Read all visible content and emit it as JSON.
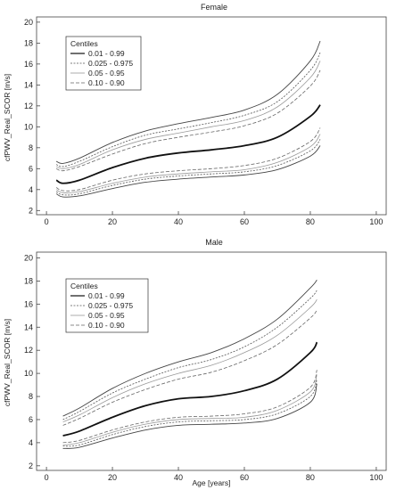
{
  "chart_data": [
    {
      "type": "line",
      "title": "Female",
      "xlabel": "",
      "ylabel": "cfPWV_Real_SCOR [m/s]",
      "xlim": [
        -3,
        103
      ],
      "ylim": [
        1.6,
        20.5
      ],
      "xticks": [
        0,
        20,
        40,
        60,
        80,
        100
      ],
      "yticks": [
        2,
        4,
        6,
        8,
        10,
        12,
        14,
        16,
        18,
        20
      ],
      "grid": false,
      "legend": {
        "title": "Centiles",
        "placement": "top-left",
        "entries": [
          "0.01 - 0.99",
          "0.025 - 0.975",
          "0.05 - 0.95",
          "0.10 - 0.90"
        ]
      },
      "x": [
        3,
        5,
        10,
        20,
        30,
        40,
        50,
        60,
        70,
        80,
        83
      ],
      "series": [
        {
          "role": "median",
          "values": [
            4.9,
            4.6,
            4.9,
            6.1,
            7.0,
            7.5,
            7.8,
            8.2,
            9.0,
            11.0,
            12.1
          ]
        },
        {
          "role": "p99",
          "values": [
            6.7,
            6.5,
            7.0,
            8.5,
            9.6,
            10.3,
            10.9,
            11.6,
            13.1,
            16.3,
            18.2
          ]
        },
        {
          "role": "p975",
          "values": [
            6.4,
            6.2,
            6.7,
            8.1,
            9.2,
            9.8,
            10.4,
            11.1,
            12.4,
            15.4,
            17.1
          ]
        },
        {
          "role": "p95",
          "values": [
            6.2,
            6.0,
            6.4,
            7.8,
            8.8,
            9.4,
            10.0,
            10.6,
            11.9,
            14.7,
            16.3
          ]
        },
        {
          "role": "p90",
          "values": [
            6.0,
            5.8,
            6.2,
            7.4,
            8.4,
            9.0,
            9.5,
            10.1,
            11.3,
            13.9,
            15.4
          ]
        },
        {
          "role": "p10",
          "values": [
            4.2,
            3.9,
            4.0,
            4.9,
            5.5,
            5.8,
            6.0,
            6.3,
            7.0,
            8.6,
            9.9
          ]
        },
        {
          "role": "p05",
          "values": [
            4.0,
            3.7,
            3.8,
            4.6,
            5.2,
            5.5,
            5.7,
            5.9,
            6.6,
            8.1,
            9.3
          ]
        },
        {
          "role": "p025",
          "values": [
            3.8,
            3.5,
            3.6,
            4.4,
            5.0,
            5.3,
            5.5,
            5.7,
            6.3,
            7.7,
            8.8
          ]
        },
        {
          "role": "p01",
          "values": [
            3.6,
            3.3,
            3.4,
            4.1,
            4.7,
            5.0,
            5.2,
            5.4,
            5.9,
            7.2,
            8.2
          ]
        }
      ]
    },
    {
      "type": "line",
      "title": "Male",
      "xlabel": "Age [years]",
      "ylabel": "cfPWV_Real_SCOR [m/s]",
      "xlim": [
        -3,
        103
      ],
      "ylim": [
        1.6,
        20.5
      ],
      "xticks": [
        0,
        20,
        40,
        60,
        80,
        100
      ],
      "yticks": [
        2,
        4,
        6,
        8,
        10,
        12,
        14,
        16,
        18,
        20
      ],
      "grid": false,
      "legend": {
        "title": "Centiles",
        "placement": "top-left",
        "entries": [
          "0.01 - 0.99",
          "0.025 - 0.975",
          "0.05 - 0.95",
          "0.10 - 0.90"
        ]
      },
      "x": [
        5,
        10,
        20,
        30,
        40,
        50,
        60,
        70,
        80,
        82
      ],
      "series": [
        {
          "role": "median",
          "values": [
            4.6,
            5.0,
            6.2,
            7.2,
            7.8,
            8.0,
            8.5,
            9.5,
            11.8,
            12.7
          ]
        },
        {
          "role": "p99",
          "values": [
            6.3,
            7.0,
            8.7,
            10.0,
            11.0,
            11.8,
            13.0,
            14.7,
            17.4,
            18.1
          ]
        },
        {
          "role": "p975",
          "values": [
            6.0,
            6.7,
            8.3,
            9.5,
            10.5,
            11.2,
            12.3,
            14.0,
            16.5,
            17.2
          ]
        },
        {
          "role": "p95",
          "values": [
            5.8,
            6.4,
            7.9,
            9.1,
            10.0,
            10.7,
            11.8,
            13.3,
            15.7,
            16.4
          ]
        },
        {
          "role": "p90",
          "values": [
            5.5,
            6.1,
            7.5,
            8.6,
            9.5,
            10.1,
            11.1,
            12.5,
            14.8,
            15.5
          ]
        },
        {
          "role": "p10",
          "values": [
            4.0,
            4.2,
            5.1,
            5.8,
            6.2,
            6.3,
            6.5,
            7.1,
            8.8,
            10.3
          ]
        },
        {
          "role": "p05",
          "values": [
            3.8,
            4.0,
            4.9,
            5.6,
            6.0,
            6.1,
            6.2,
            6.8,
            8.4,
            9.9
          ]
        },
        {
          "role": "p025",
          "values": [
            3.7,
            3.8,
            4.7,
            5.4,
            5.8,
            5.9,
            6.0,
            6.5,
            8.0,
            9.5
          ]
        },
        {
          "role": "p01",
          "values": [
            3.5,
            3.6,
            4.4,
            5.1,
            5.5,
            5.6,
            5.7,
            6.1,
            7.5,
            9.1
          ]
        }
      ]
    }
  ]
}
